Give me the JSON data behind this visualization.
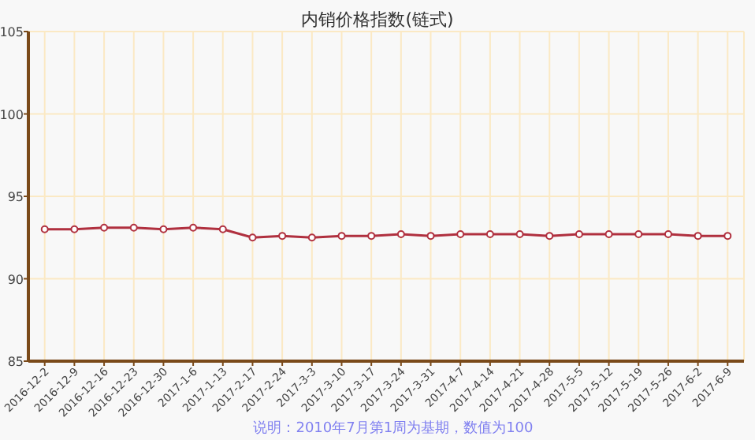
{
  "chart_data": {
    "type": "line",
    "title": "内销价格指数(链式)",
    "categories": [
      "2016-12-2",
      "2016-12-9",
      "2016-12-16",
      "2016-12-23",
      "2016-12-30",
      "2017-1-6",
      "2017-1-13",
      "2017-2-17",
      "2017-2-24",
      "2017-3-3",
      "2017-3-10",
      "2017-3-17",
      "2017-3-24",
      "2017-3-31",
      "2017-4-7",
      "2017-4-14",
      "2017-4-21",
      "2017-4-28",
      "2017-5-5",
      "2017-5-12",
      "2017-5-19",
      "2017-5-26",
      "2017-6-2",
      "2017-6-9"
    ],
    "series": [
      {
        "color": "#b0303f",
        "values": [
          93.0,
          93.0,
          93.1,
          93.1,
          93.0,
          93.1,
          93.0,
          92.5,
          92.6,
          92.5,
          92.6,
          92.6,
          92.7,
          92.6,
          92.7,
          92.7,
          92.7,
          92.6,
          92.7,
          92.7,
          92.7,
          92.7,
          92.6,
          92.6
        ]
      }
    ],
    "ylim": [
      85,
      105
    ],
    "yticks": [
      85,
      90,
      95,
      100,
      105
    ],
    "grid": true,
    "marker": "circle",
    "line_style": "solid",
    "annotations": [
      "说明：2010年7月第1周为基期，数值为100"
    ]
  }
}
